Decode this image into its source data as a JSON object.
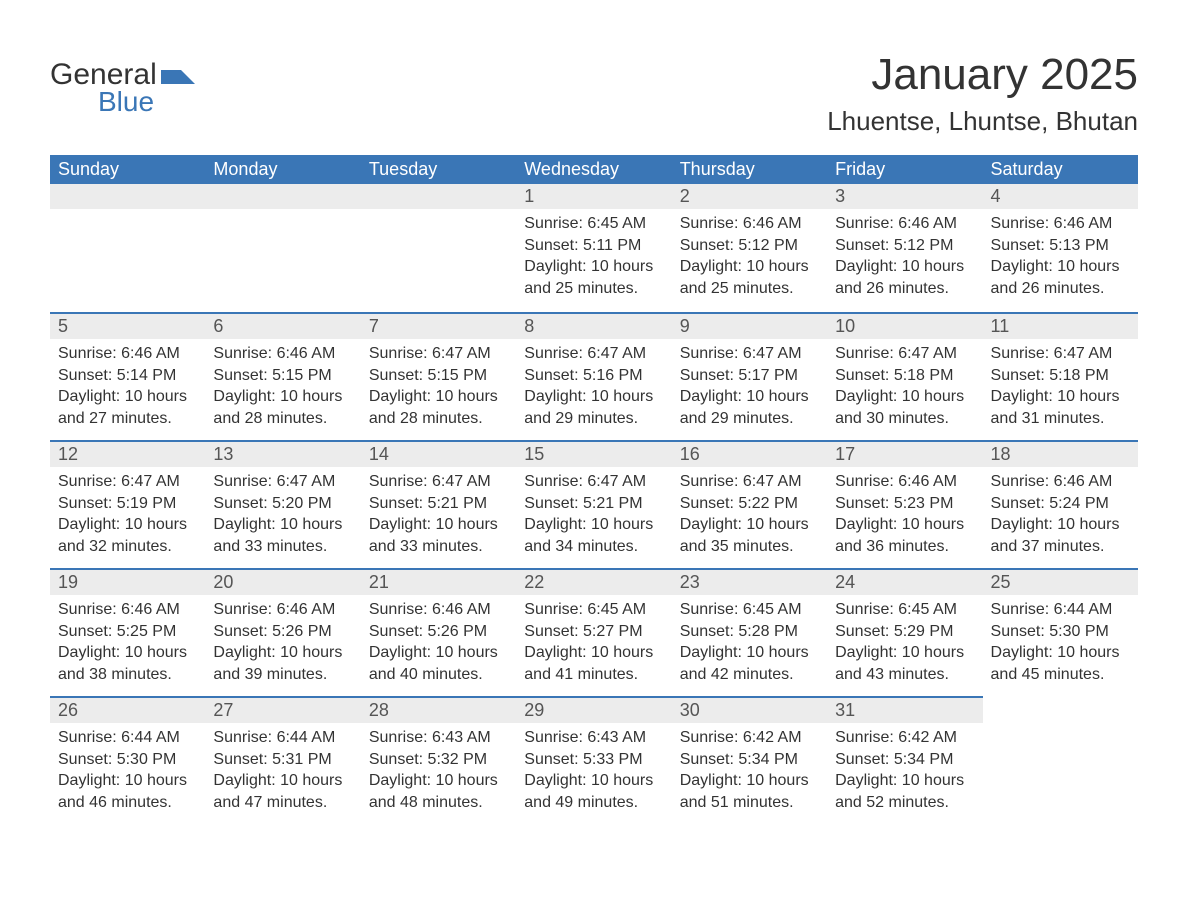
{
  "logo": {
    "text1": "General",
    "text2": "Blue",
    "accent_color": "#3a76b6"
  },
  "title": "January 2025",
  "location": "Lhuentse, Lhuntse, Bhutan",
  "day_headers": [
    "Sunday",
    "Monday",
    "Tuesday",
    "Wednesday",
    "Thursday",
    "Friday",
    "Saturday"
  ],
  "colors": {
    "header_bg": "#3a76b6",
    "header_text": "#ffffff",
    "daynum_bg": "#ececec",
    "rule": "#3a76b6",
    "body_text": "#333333"
  },
  "fonts": {
    "title_pt": 44,
    "location_pt": 26,
    "header_pt": 18,
    "daynum_pt": 18,
    "body_pt": 16
  },
  "weeks": [
    [
      null,
      null,
      null,
      {
        "n": "1",
        "sunrise": "Sunrise: 6:45 AM",
        "sunset": "Sunset: 5:11 PM",
        "d1": "Daylight: 10 hours",
        "d2": "and 25 minutes."
      },
      {
        "n": "2",
        "sunrise": "Sunrise: 6:46 AM",
        "sunset": "Sunset: 5:12 PM",
        "d1": "Daylight: 10 hours",
        "d2": "and 25 minutes."
      },
      {
        "n": "3",
        "sunrise": "Sunrise: 6:46 AM",
        "sunset": "Sunset: 5:12 PM",
        "d1": "Daylight: 10 hours",
        "d2": "and 26 minutes."
      },
      {
        "n": "4",
        "sunrise": "Sunrise: 6:46 AM",
        "sunset": "Sunset: 5:13 PM",
        "d1": "Daylight: 10 hours",
        "d2": "and 26 minutes."
      }
    ],
    [
      {
        "n": "5",
        "sunrise": "Sunrise: 6:46 AM",
        "sunset": "Sunset: 5:14 PM",
        "d1": "Daylight: 10 hours",
        "d2": "and 27 minutes."
      },
      {
        "n": "6",
        "sunrise": "Sunrise: 6:46 AM",
        "sunset": "Sunset: 5:15 PM",
        "d1": "Daylight: 10 hours",
        "d2": "and 28 minutes."
      },
      {
        "n": "7",
        "sunrise": "Sunrise: 6:47 AM",
        "sunset": "Sunset: 5:15 PM",
        "d1": "Daylight: 10 hours",
        "d2": "and 28 minutes."
      },
      {
        "n": "8",
        "sunrise": "Sunrise: 6:47 AM",
        "sunset": "Sunset: 5:16 PM",
        "d1": "Daylight: 10 hours",
        "d2": "and 29 minutes."
      },
      {
        "n": "9",
        "sunrise": "Sunrise: 6:47 AM",
        "sunset": "Sunset: 5:17 PM",
        "d1": "Daylight: 10 hours",
        "d2": "and 29 minutes."
      },
      {
        "n": "10",
        "sunrise": "Sunrise: 6:47 AM",
        "sunset": "Sunset: 5:18 PM",
        "d1": "Daylight: 10 hours",
        "d2": "and 30 minutes."
      },
      {
        "n": "11",
        "sunrise": "Sunrise: 6:47 AM",
        "sunset": "Sunset: 5:18 PM",
        "d1": "Daylight: 10 hours",
        "d2": "and 31 minutes."
      }
    ],
    [
      {
        "n": "12",
        "sunrise": "Sunrise: 6:47 AM",
        "sunset": "Sunset: 5:19 PM",
        "d1": "Daylight: 10 hours",
        "d2": "and 32 minutes."
      },
      {
        "n": "13",
        "sunrise": "Sunrise: 6:47 AM",
        "sunset": "Sunset: 5:20 PM",
        "d1": "Daylight: 10 hours",
        "d2": "and 33 minutes."
      },
      {
        "n": "14",
        "sunrise": "Sunrise: 6:47 AM",
        "sunset": "Sunset: 5:21 PM",
        "d1": "Daylight: 10 hours",
        "d2": "and 33 minutes."
      },
      {
        "n": "15",
        "sunrise": "Sunrise: 6:47 AM",
        "sunset": "Sunset: 5:21 PM",
        "d1": "Daylight: 10 hours",
        "d2": "and 34 minutes."
      },
      {
        "n": "16",
        "sunrise": "Sunrise: 6:47 AM",
        "sunset": "Sunset: 5:22 PM",
        "d1": "Daylight: 10 hours",
        "d2": "and 35 minutes."
      },
      {
        "n": "17",
        "sunrise": "Sunrise: 6:46 AM",
        "sunset": "Sunset: 5:23 PM",
        "d1": "Daylight: 10 hours",
        "d2": "and 36 minutes."
      },
      {
        "n": "18",
        "sunrise": "Sunrise: 6:46 AM",
        "sunset": "Sunset: 5:24 PM",
        "d1": "Daylight: 10 hours",
        "d2": "and 37 minutes."
      }
    ],
    [
      {
        "n": "19",
        "sunrise": "Sunrise: 6:46 AM",
        "sunset": "Sunset: 5:25 PM",
        "d1": "Daylight: 10 hours",
        "d2": "and 38 minutes."
      },
      {
        "n": "20",
        "sunrise": "Sunrise: 6:46 AM",
        "sunset": "Sunset: 5:26 PM",
        "d1": "Daylight: 10 hours",
        "d2": "and 39 minutes."
      },
      {
        "n": "21",
        "sunrise": "Sunrise: 6:46 AM",
        "sunset": "Sunset: 5:26 PM",
        "d1": "Daylight: 10 hours",
        "d2": "and 40 minutes."
      },
      {
        "n": "22",
        "sunrise": "Sunrise: 6:45 AM",
        "sunset": "Sunset: 5:27 PM",
        "d1": "Daylight: 10 hours",
        "d2": "and 41 minutes."
      },
      {
        "n": "23",
        "sunrise": "Sunrise: 6:45 AM",
        "sunset": "Sunset: 5:28 PM",
        "d1": "Daylight: 10 hours",
        "d2": "and 42 minutes."
      },
      {
        "n": "24",
        "sunrise": "Sunrise: 6:45 AM",
        "sunset": "Sunset: 5:29 PM",
        "d1": "Daylight: 10 hours",
        "d2": "and 43 minutes."
      },
      {
        "n": "25",
        "sunrise": "Sunrise: 6:44 AM",
        "sunset": "Sunset: 5:30 PM",
        "d1": "Daylight: 10 hours",
        "d2": "and 45 minutes."
      }
    ],
    [
      {
        "n": "26",
        "sunrise": "Sunrise: 6:44 AM",
        "sunset": "Sunset: 5:30 PM",
        "d1": "Daylight: 10 hours",
        "d2": "and 46 minutes."
      },
      {
        "n": "27",
        "sunrise": "Sunrise: 6:44 AM",
        "sunset": "Sunset: 5:31 PM",
        "d1": "Daylight: 10 hours",
        "d2": "and 47 minutes."
      },
      {
        "n": "28",
        "sunrise": "Sunrise: 6:43 AM",
        "sunset": "Sunset: 5:32 PM",
        "d1": "Daylight: 10 hours",
        "d2": "and 48 minutes."
      },
      {
        "n": "29",
        "sunrise": "Sunrise: 6:43 AM",
        "sunset": "Sunset: 5:33 PM",
        "d1": "Daylight: 10 hours",
        "d2": "and 49 minutes."
      },
      {
        "n": "30",
        "sunrise": "Sunrise: 6:42 AM",
        "sunset": "Sunset: 5:34 PM",
        "d1": "Daylight: 10 hours",
        "d2": "and 51 minutes."
      },
      {
        "n": "31",
        "sunrise": "Sunrise: 6:42 AM",
        "sunset": "Sunset: 5:34 PM",
        "d1": "Daylight: 10 hours",
        "d2": "and 52 minutes."
      },
      null
    ]
  ]
}
